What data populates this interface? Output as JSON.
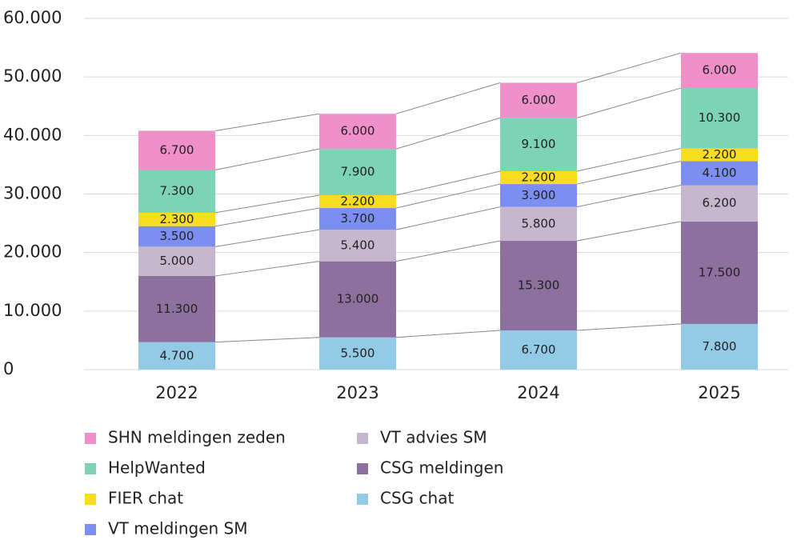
{
  "chart_data": {
    "type": "bar",
    "stacked": true,
    "categories": [
      "2022",
      "2023",
      "2024",
      "2025"
    ],
    "series": [
      {
        "name": "CSG chat",
        "color": "#93cbe7",
        "values": [
          4700,
          5500,
          6700,
          7800
        ],
        "value_labels": [
          "4.700",
          "5.500",
          "6.700",
          "7.800"
        ]
      },
      {
        "name": "CSG meldingen",
        "color": "#8d709d",
        "values": [
          11300,
          13000,
          15300,
          17500
        ],
        "value_labels": [
          "11.300",
          "13.000",
          "15.300",
          "17.500"
        ]
      },
      {
        "name": "VT advies SM",
        "color": "#c6b7cf",
        "values": [
          5000,
          5400,
          5800,
          6200
        ],
        "value_labels": [
          "5.000",
          "5.400",
          "5.800",
          "6.200"
        ]
      },
      {
        "name": "VT meldingen SM",
        "color": "#7c8ef0",
        "values": [
          3500,
          3700,
          3900,
          4100
        ],
        "value_labels": [
          "3.500",
          "3.700",
          "3.900",
          "4.100"
        ]
      },
      {
        "name": "FIER chat",
        "color": "#f7dc1f",
        "values": [
          2300,
          2200,
          2200,
          2200
        ],
        "value_labels": [
          "2.300",
          "2.200",
          "2.200",
          "2.200"
        ]
      },
      {
        "name": "HelpWanted",
        "color": "#7cd3b5",
        "values": [
          7300,
          7900,
          9100,
          10300
        ],
        "value_labels": [
          "7.300",
          "7.900",
          "9.100",
          "10.300"
        ]
      },
      {
        "name": "SHN meldingen zeden",
        "color": "#ef90cb",
        "values": [
          6700,
          6000,
          6000,
          6000
        ],
        "value_labels": [
          "6.700",
          "6.000",
          "6.000",
          "6.000"
        ]
      }
    ],
    "ylim": [
      0,
      60000
    ],
    "yticks": [
      0,
      {
        "value": 10000,
        "label": "10.000"
      },
      {
        "value": 20000,
        "label": "20.000"
      },
      {
        "value": 30000,
        "label": "30.000"
      },
      {
        "value": 40000,
        "label": "40.000"
      },
      {
        "value": 50000,
        "label": "50.000"
      },
      {
        "value": 60000,
        "label": "60.000"
      }
    ],
    "grid": true,
    "legend": "bottom"
  }
}
